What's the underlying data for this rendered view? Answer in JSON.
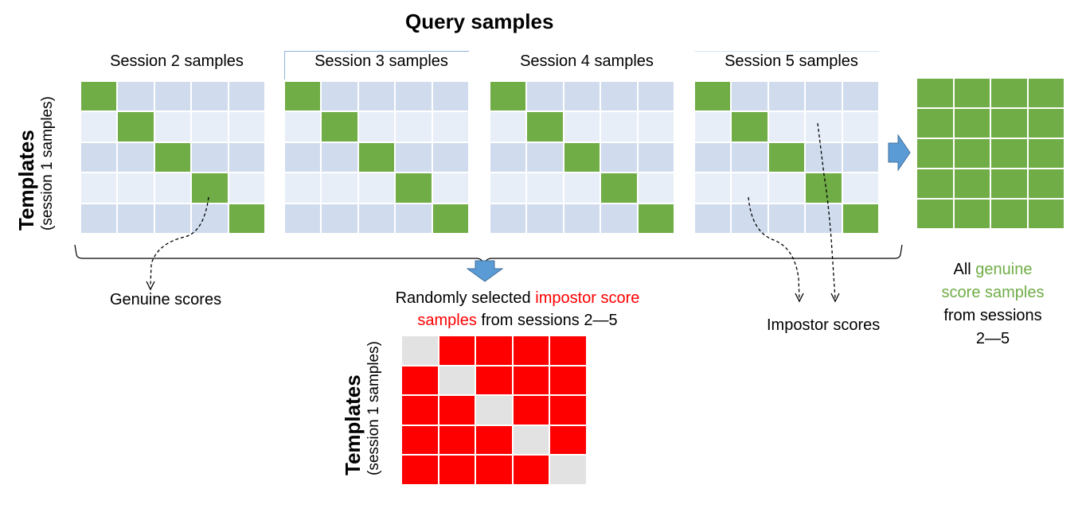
{
  "title": "Query samples",
  "templates_label": {
    "main": "Templates",
    "sub": "(session 1 samples)"
  },
  "sessions": [
    {
      "label": "Session 2 samples"
    },
    {
      "label": "Session 3 samples"
    },
    {
      "label": "Session 4 samples"
    },
    {
      "label": "Session 5 samples"
    }
  ],
  "genuine_scores_label": "Genuine scores",
  "impostor_scores_label": "Impostor scores",
  "impostor_caption": {
    "line1_prefix": "Randomly selected ",
    "line1_highlight": "impostor score",
    "line2_highlight": "samples",
    "line2_suffix": " from sessions 2—5"
  },
  "genuine_caption": {
    "line1_prefix": "All ",
    "line1_highlight": "genuine",
    "line2_highlight": "score samples",
    "line3": "from sessions",
    "line4": "2—5"
  },
  "colors": {
    "genuine": "#70ad47",
    "impostor_highlight": "#ff0000",
    "grid_dark": "#d0dcee",
    "grid_light": "#e8eef8",
    "impostor_diag": "#e2e2e2",
    "arrow": "#5b9bd5",
    "genuine_text": "#70ad47"
  }
}
